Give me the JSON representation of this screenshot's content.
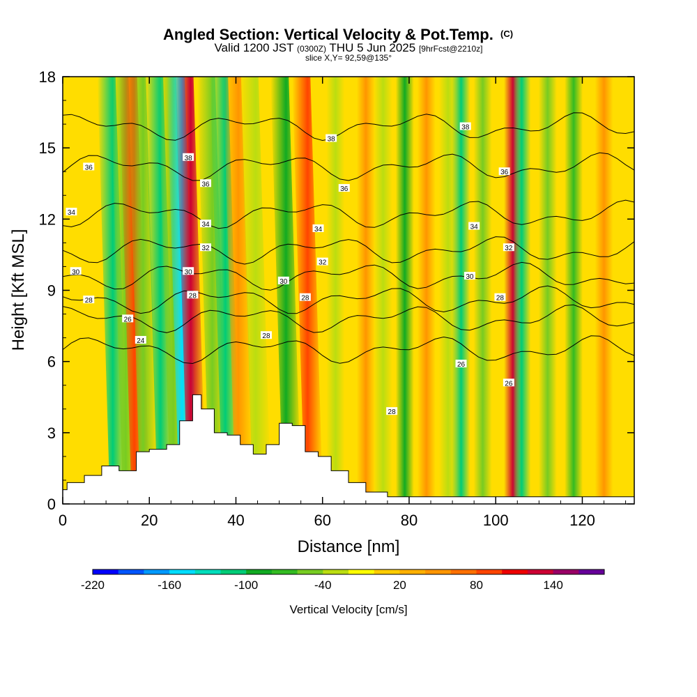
{
  "header": {
    "title_main": "Angled Section: Vertical Velocity & Pot.Temp.",
    "title_unit": "(C)",
    "valid_prefix": "Valid 1200 JST",
    "valid_z": "(0300Z)",
    "valid_date": "THU 5 Jun 2025",
    "fcst": "[9hrFcst@2210z]",
    "slice": "slice X,Y= 92,59@135°"
  },
  "chart_data": {
    "type": "heatmap",
    "xlabel": "Distance [nm]",
    "ylabel": "Height [Kft MSL]",
    "xlim": [
      0,
      132
    ],
    "ylim": [
      0,
      18
    ],
    "x_ticks": [
      0,
      20,
      40,
      60,
      80,
      100,
      120
    ],
    "y_ticks": [
      0,
      3,
      6,
      9,
      12,
      15,
      18
    ],
    "colorbar": {
      "label": "Vertical Velocity [cm/s]",
      "min": -220,
      "step": 20,
      "tick_labels": [
        "-220",
        "-160",
        "-100",
        "-40",
        "20",
        "80",
        "140"
      ],
      "tick_values": [
        -220,
        -160,
        -100,
        -40,
        20,
        80,
        140
      ],
      "colors": [
        "#0000ff",
        "#0055ff",
        "#0099ff",
        "#00ddff",
        "#00ddbb",
        "#00cc77",
        "#11aa22",
        "#33bb22",
        "#77cc22",
        "#bbdd11",
        "#ffff00",
        "#ffcc00",
        "#ffb000",
        "#ff9500",
        "#ff7000",
        "#ff4400",
        "#ee0000",
        "#cc0033",
        "#990066",
        "#660099"
      ]
    },
    "vertical_velocity_bands": [
      {
        "x": 13,
        "w": -120
      },
      {
        "x": 16,
        "w": -60
      },
      {
        "x": 18,
        "w": 90
      },
      {
        "x": 20,
        "w": -50
      },
      {
        "x": 24,
        "w": -110
      },
      {
        "x": 27,
        "w": -60
      },
      {
        "x": 29,
        "w": -160
      },
      {
        "x": 31,
        "w": 130
      },
      {
        "x": 36,
        "w": -50
      },
      {
        "x": 39,
        "w": -110
      },
      {
        "x": 42,
        "w": 50
      },
      {
        "x": 46,
        "w": -40
      },
      {
        "x": 53,
        "w": -100
      },
      {
        "x": 58,
        "w": 90
      },
      {
        "x": 63,
        "w": -40
      },
      {
        "x": 70,
        "w": 40
      },
      {
        "x": 74,
        "w": -40
      },
      {
        "x": 79,
        "w": -90
      },
      {
        "x": 84,
        "w": 40
      },
      {
        "x": 89,
        "w": -40
      },
      {
        "x": 92,
        "w": -110
      },
      {
        "x": 97,
        "w": -60
      },
      {
        "x": 104,
        "w": 130
      },
      {
        "x": 106,
        "w": -110
      },
      {
        "x": 112,
        "w": -50
      },
      {
        "x": 118,
        "w": -80
      },
      {
        "x": 125,
        "w": 40
      }
    ],
    "terrain": {
      "x": [
        0,
        1,
        5,
        9,
        13,
        17,
        20,
        24,
        27,
        30,
        32,
        35,
        38,
        41,
        44,
        47,
        50,
        53,
        56,
        59,
        62,
        66,
        70,
        75,
        132
      ],
      "height": [
        0.6,
        0.9,
        1.2,
        1.6,
        1.4,
        2.2,
        2.3,
        2.5,
        3.5,
        4.6,
        4.0,
        3.0,
        2.9,
        2.5,
        2.1,
        2.5,
        3.4,
        3.3,
        2.2,
        2.0,
        1.4,
        0.9,
        0.5,
        0.3,
        0.3
      ]
    },
    "pot_temp_contours": [
      {
        "label": "24",
        "base_kft": 6.5
      },
      {
        "label": "26",
        "base_kft": 7.8
      },
      {
        "label": "28",
        "base_kft": 8.6
      },
      {
        "label": "30",
        "base_kft": 9.6
      },
      {
        "label": "32",
        "base_kft": 10.7
      },
      {
        "label": "34",
        "base_kft": 12.2
      },
      {
        "label": "36",
        "base_kft": 14.2
      },
      {
        "label": "38",
        "base_kft": 15.9
      }
    ],
    "contour_labels": [
      {
        "text": "36",
        "x": 6,
        "y": 14.2
      },
      {
        "text": "34",
        "x": 2,
        "y": 12.3
      },
      {
        "text": "30",
        "x": 3,
        "y": 9.8
      },
      {
        "text": "28",
        "x": 6,
        "y": 8.6
      },
      {
        "text": "26",
        "x": 15,
        "y": 7.8
      },
      {
        "text": "24",
        "x": 18,
        "y": 6.9
      },
      {
        "text": "38",
        "x": 29,
        "y": 14.6
      },
      {
        "text": "36",
        "x": 33,
        "y": 13.5
      },
      {
        "text": "34",
        "x": 33,
        "y": 11.8
      },
      {
        "text": "32",
        "x": 33,
        "y": 10.8
      },
      {
        "text": "30",
        "x": 29,
        "y": 9.8
      },
      {
        "text": "28",
        "x": 30,
        "y": 8.8
      },
      {
        "text": "28",
        "x": 47,
        "y": 7.1
      },
      {
        "text": "30",
        "x": 51,
        "y": 9.4
      },
      {
        "text": "28",
        "x": 56,
        "y": 8.7
      },
      {
        "text": "32",
        "x": 60,
        "y": 10.2
      },
      {
        "text": "34",
        "x": 59,
        "y": 11.6
      },
      {
        "text": "36",
        "x": 65,
        "y": 13.3
      },
      {
        "text": "38",
        "x": 62,
        "y": 15.4
      },
      {
        "text": "38",
        "x": 93,
        "y": 15.9
      },
      {
        "text": "36",
        "x": 102,
        "y": 14.0
      },
      {
        "text": "34",
        "x": 95,
        "y": 11.7
      },
      {
        "text": "32",
        "x": 103,
        "y": 10.8
      },
      {
        "text": "30",
        "x": 94,
        "y": 9.6
      },
      {
        "text": "28",
        "x": 101,
        "y": 8.7
      },
      {
        "text": "26",
        "x": 92,
        "y": 5.9
      },
      {
        "text": "26",
        "x": 103,
        "y": 5.1
      },
      {
        "text": "28",
        "x": 76,
        "y": 3.9
      }
    ]
  }
}
